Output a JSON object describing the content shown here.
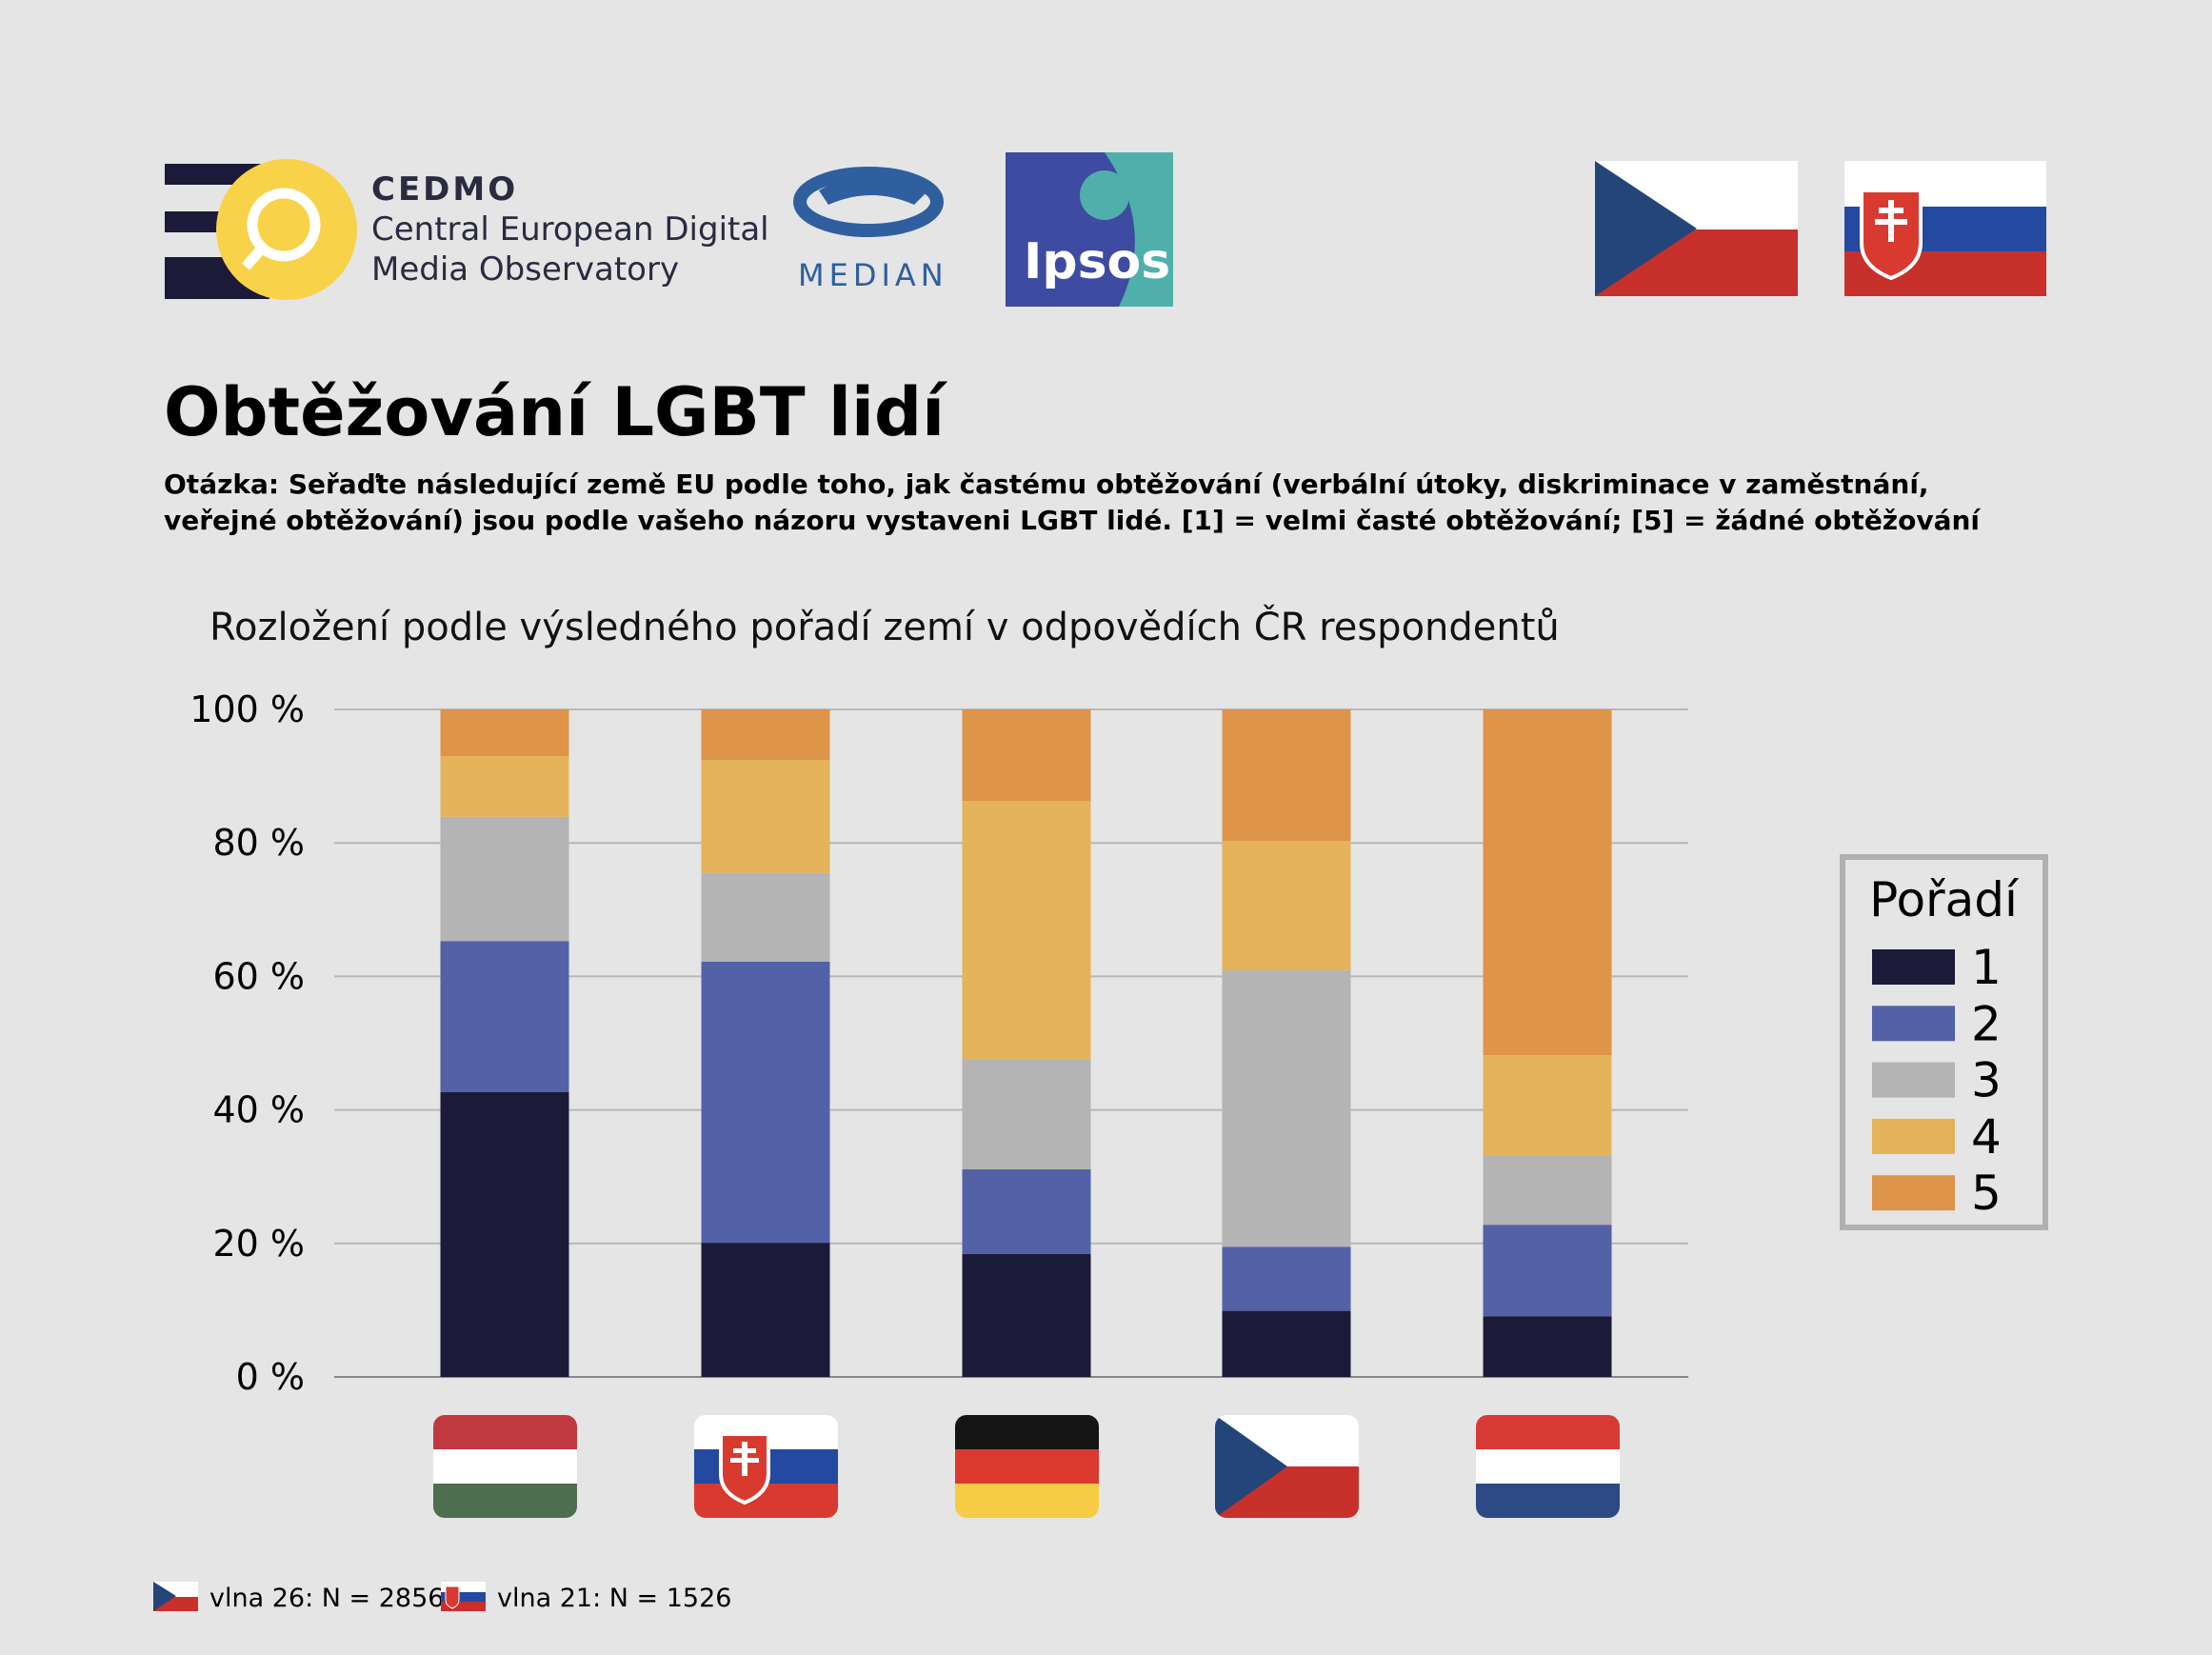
{
  "logos": {
    "cedmo": {
      "name": "CEDMO",
      "line1": "Central European Digital",
      "line2": "Media Observatory"
    },
    "median": "MEDIAN",
    "ipsos": "Ipsos"
  },
  "title": "Obtěžování LGBT lidí",
  "question": {
    "line1": "Otázka: Seřaďte následující země EU podle toho, jak častému obtěžování (verbální útoky, diskriminace v zaměstnání,",
    "line2": "veřejné obtěžování) jsou podle vašeho názoru vystaveni LGBT lidé. [1] = velmi časté obtěžování; [5] = žádné obtěžování"
  },
  "footer": {
    "cz": "vlna 26: N = 2856",
    "sk": "vlna 21: N = 1526"
  },
  "colors": {
    "1": "#1b1a38",
    "2": "#5361a6",
    "3": "#b4b4b4",
    "4": "#e4b35a",
    "5": "#de9449"
  },
  "chart_data": {
    "type": "bar",
    "stacked": true,
    "title": "Rozložení podle výsledného pořadí zemí v odpovědích ČR respondentů",
    "categories": [
      "Maďarsko",
      "Slovensko",
      "Německo",
      "Česko",
      "Nizozemsko"
    ],
    "category_icons": [
      "flag-hungary",
      "flag-slovakia",
      "flag-germany",
      "flag-czechia",
      "flag-netherlands"
    ],
    "ylim": [
      0,
      100
    ],
    "yticks": [
      0,
      20,
      40,
      60,
      80,
      100
    ],
    "ytick_labels": [
      "0 %",
      "20 %",
      "40 %",
      "60 %",
      "80 %",
      "100 %"
    ],
    "grid": true,
    "legend": {
      "title": "Pořadí",
      "placement": "right"
    },
    "series": [
      {
        "name": "1",
        "values": [
          42.7,
          20.1,
          18.4,
          9.9,
          9.1
        ]
      },
      {
        "name": "2",
        "values": [
          22.6,
          42.1,
          12.7,
          9.6,
          13.7
        ]
      },
      {
        "name": "3",
        "values": [
          18.6,
          13.3,
          16.5,
          41.4,
          10.4
        ]
      },
      {
        "name": "4",
        "values": [
          9.1,
          16.9,
          38.7,
          19.4,
          15.0
        ]
      },
      {
        "name": "5",
        "values": [
          7.0,
          7.6,
          13.7,
          19.7,
          51.8
        ]
      }
    ]
  }
}
